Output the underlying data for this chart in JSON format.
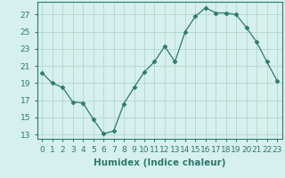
{
  "x": [
    0,
    1,
    2,
    3,
    4,
    5,
    6,
    7,
    8,
    9,
    10,
    11,
    12,
    13,
    14,
    15,
    16,
    17,
    18,
    19,
    20,
    21,
    22,
    23
  ],
  "y": [
    20.2,
    19.0,
    18.5,
    16.8,
    16.7,
    14.8,
    13.1,
    13.4,
    16.6,
    18.5,
    20.3,
    21.5,
    23.3,
    21.5,
    25.0,
    26.8,
    27.8,
    27.2,
    27.2,
    27.0,
    25.5,
    23.8,
    21.5,
    19.3
  ],
  "line_color": "#2d7a6e",
  "marker": "D",
  "marker_size": 2.5,
  "bg_color": "#d6f0ee",
  "grid_color": "#b0d8cc",
  "xlabel": "Humidex (Indice chaleur)",
  "xlim": [
    -0.5,
    23.5
  ],
  "ylim": [
    12.5,
    28.5
  ],
  "yticks": [
    13,
    15,
    17,
    19,
    21,
    23,
    25,
    27
  ],
  "xticks": [
    0,
    1,
    2,
    3,
    4,
    5,
    6,
    7,
    8,
    9,
    10,
    11,
    12,
    13,
    14,
    15,
    16,
    17,
    18,
    19,
    20,
    21,
    22,
    23
  ],
  "tick_fontsize": 6.5,
  "xlabel_fontsize": 7.5
}
